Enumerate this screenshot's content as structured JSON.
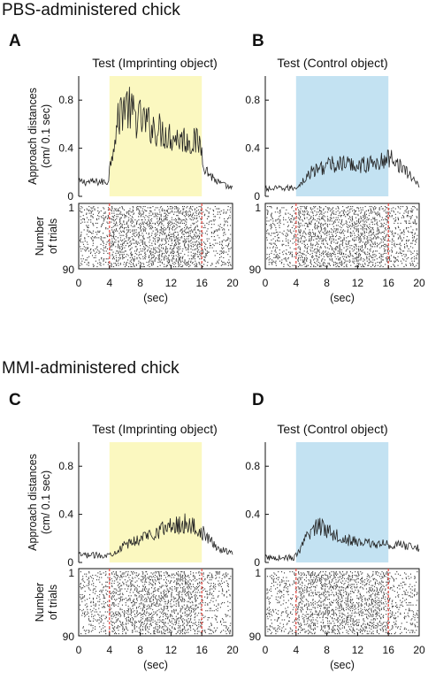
{
  "section_titles": [
    "PBS-administered chick",
    "MMI-administered chick"
  ],
  "colors": {
    "imprinting_shade": "#fbf8c0",
    "control_shade": "#c3e2f2",
    "onset_line": "#e8473f",
    "trace": "#222222"
  },
  "labels": {
    "ylabel_top_line1": "Approach distances",
    "ylabel_top_line2": "(cm/ 0.1 sec)",
    "ylabel_bottom_line1": "Number",
    "ylabel_bottom_line2": "of trials",
    "xlabel": "(sec)"
  },
  "chart_data": [
    {
      "panel": "A",
      "type": "line",
      "title": "Test (Imprinting object)",
      "x_range": [
        0,
        20
      ],
      "x_ticks": [
        0,
        4,
        8,
        12,
        16,
        20
      ],
      "ylim": [
        0,
        1.0
      ],
      "y_ticks": [
        0,
        0.4,
        0.8
      ],
      "stimulus_window": [
        4,
        16
      ],
      "shade": "imprinting",
      "trace_profile": {
        "x": [
          0,
          3.8,
          4.5,
          5.5,
          6,
          7,
          9,
          12,
          15.8,
          16.5,
          18,
          20
        ],
        "y": [
          0.12,
          0.12,
          0.45,
          0.72,
          0.78,
          0.68,
          0.6,
          0.5,
          0.44,
          0.22,
          0.12,
          0.06
        ]
      },
      "raster": {
        "trials": [
          1,
          90
        ],
        "y_tick_labels": [
          "1",
          "90"
        ],
        "onset_lines": [
          4,
          16
        ]
      }
    },
    {
      "panel": "B",
      "type": "line",
      "title": "Test (Control object)",
      "x_range": [
        0,
        20
      ],
      "x_ticks": [
        0,
        4,
        8,
        12,
        16,
        20
      ],
      "ylim": [
        0,
        1.0
      ],
      "y_ticks": [
        0,
        0.4,
        0.8
      ],
      "stimulus_window": [
        4,
        16
      ],
      "shade": "control",
      "trace_profile": {
        "x": [
          0,
          3.8,
          4.5,
          6,
          8,
          10,
          12,
          14,
          15.8,
          16.5,
          18,
          20
        ],
        "y": [
          0.06,
          0.07,
          0.1,
          0.2,
          0.26,
          0.27,
          0.26,
          0.27,
          0.3,
          0.34,
          0.22,
          0.1
        ]
      },
      "raster": {
        "trials": [
          1,
          90
        ],
        "y_tick_labels": [
          "1",
          "90"
        ],
        "onset_lines": [
          4,
          16
        ]
      }
    },
    {
      "panel": "C",
      "type": "line",
      "title": "Test (Imprinting object)",
      "x_range": [
        0,
        20
      ],
      "x_ticks": [
        0,
        4,
        8,
        12,
        16,
        20
      ],
      "ylim": [
        0,
        1.0
      ],
      "y_ticks": [
        0,
        0.4,
        0.8
      ],
      "stimulus_window": [
        4,
        16
      ],
      "shade": "imprinting",
      "trace_profile": {
        "x": [
          0,
          3.8,
          4.5,
          6,
          8,
          10,
          12,
          14,
          15.8,
          16.5,
          18,
          20
        ],
        "y": [
          0.06,
          0.06,
          0.08,
          0.14,
          0.2,
          0.26,
          0.3,
          0.33,
          0.26,
          0.22,
          0.12,
          0.08
        ]
      },
      "raster": {
        "trials": [
          1,
          90
        ],
        "y_tick_labels": [
          "1",
          "90"
        ],
        "onset_lines": [
          4,
          16
        ]
      }
    },
    {
      "panel": "D",
      "type": "line",
      "title": "Test (Control object)",
      "x_range": [
        0,
        20
      ],
      "x_ticks": [
        0,
        4,
        8,
        12,
        16,
        20
      ],
      "ylim": [
        0,
        1.0
      ],
      "y_ticks": [
        0,
        0.4,
        0.8
      ],
      "stimulus_window": [
        4,
        16
      ],
      "shade": "control",
      "trace_profile": {
        "x": [
          0,
          3.8,
          4.5,
          5.5,
          6.5,
          7.5,
          9,
          11,
          13,
          15.8,
          16.5,
          18,
          20
        ],
        "y": [
          0.04,
          0.04,
          0.1,
          0.22,
          0.3,
          0.3,
          0.24,
          0.18,
          0.16,
          0.15,
          0.15,
          0.14,
          0.12
        ]
      },
      "raster": {
        "trials": [
          1,
          90
        ],
        "y_tick_labels": [
          "1",
          "90"
        ],
        "onset_lines": [
          4,
          16
        ]
      }
    }
  ]
}
